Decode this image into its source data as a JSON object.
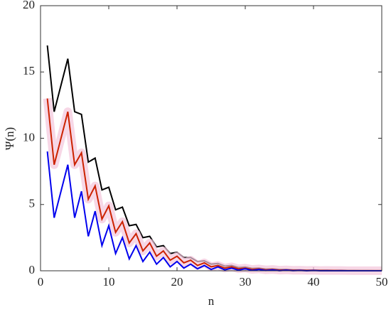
{
  "chart_data": {
    "type": "line",
    "x": [
      1,
      2,
      3,
      4,
      5,
      6,
      7,
      8,
      9,
      10,
      11,
      12,
      13,
      14,
      15,
      16,
      17,
      18,
      19,
      20,
      21,
      22,
      23,
      24,
      25,
      26,
      27,
      28,
      29,
      30,
      31,
      32,
      33,
      34,
      35,
      36,
      37,
      38,
      39,
      40,
      41,
      42,
      43,
      44,
      45,
      46,
      47,
      48,
      49,
      50
    ],
    "series": [
      {
        "color": "#000000",
        "values": [
          17,
          12,
          14,
          16,
          12,
          11.8,
          8.2,
          8.5,
          6.1,
          6.3,
          4.6,
          4.8,
          3.4,
          3.5,
          2.5,
          2.6,
          1.8,
          1.9,
          1.3,
          1.4,
          1.0,
          1.0,
          0.7,
          0.75,
          0.5,
          0.55,
          0.35,
          0.4,
          0.25,
          0.28,
          0.18,
          0.2,
          0.13,
          0.14,
          0.1,
          0.1,
          0.07,
          0.07,
          0.05,
          0.05,
          0.04,
          0.035,
          0.03,
          0.025,
          0.02,
          0.02,
          0.015,
          0.015,
          0.01,
          0.01
        ]
      },
      {
        "color": "#cc2200",
        "band_color": "#f4c6dc",
        "values": [
          13,
          8,
          10,
          12,
          8,
          8.9,
          5.4,
          6.4,
          3.9,
          4.9,
          2.9,
          3.7,
          2.1,
          2.8,
          1.5,
          2.1,
          1.1,
          1.5,
          0.8,
          1.1,
          0.6,
          0.8,
          0.4,
          0.6,
          0.3,
          0.4,
          0.2,
          0.3,
          0.15,
          0.2,
          0.1,
          0.14,
          0.07,
          0.1,
          0.05,
          0.07,
          0.04,
          0.05,
          0.03,
          0.04,
          0.02,
          0.03,
          0.02,
          0.02,
          0.01,
          0.01,
          0.01,
          0.01,
          0.01,
          0.01
        ]
      },
      {
        "color": "#0000ee",
        "values": [
          9,
          4,
          6,
          8,
          4,
          6,
          2.6,
          4.5,
          1.9,
          3.4,
          1.3,
          2.5,
          0.9,
          1.9,
          0.7,
          1.4,
          0.5,
          1.0,
          0.3,
          0.7,
          0.2,
          0.5,
          0.15,
          0.4,
          0.1,
          0.3,
          0.07,
          0.2,
          0.05,
          0.15,
          0.03,
          0.1,
          0.02,
          0.07,
          0.01,
          0.05,
          0.01,
          0.03,
          0,
          0.02,
          0,
          0.01,
          0,
          0.01,
          0,
          0,
          0,
          0,
          0,
          0
        ]
      }
    ],
    "xlabel": "n",
    "ylabel": "Ψ(n)",
    "xlim": [
      0,
      50
    ],
    "xticks": [
      0,
      10,
      20,
      30,
      40,
      50
    ],
    "ylim": [
      0,
      20
    ],
    "yticks": [
      0,
      5,
      10,
      15,
      20
    ]
  }
}
